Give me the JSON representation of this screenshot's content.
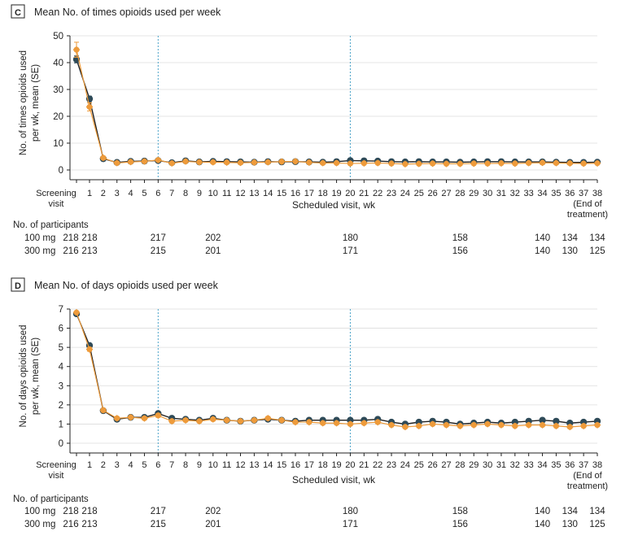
{
  "colors": {
    "dose100": "#2e4a58",
    "dose300": "#ee9b3b",
    "axis": "#222222",
    "ref_line": "#4aa3c8",
    "grid": "#dcdcdc"
  },
  "x_ticks": [
    "Screening",
    "1",
    "2",
    "3",
    "4",
    "5",
    "6",
    "7",
    "8",
    "9",
    "10",
    "11",
    "12",
    "13",
    "14",
    "15",
    "16",
    "17",
    "18",
    "19",
    "20",
    "21",
    "22",
    "23",
    "24",
    "25",
    "26",
    "27",
    "28",
    "29",
    "30",
    "31",
    "32",
    "33",
    "34",
    "35",
    "36",
    "37",
    "38"
  ],
  "x_sub_first": "visit",
  "x_sub_last": [
    "(End of",
    "treatment)"
  ],
  "participants": {
    "title": "No. of participants",
    "rows": [
      {
        "label": "100 mg",
        "ticks": [
          "Screening",
          "1",
          "6",
          "10",
          "20",
          "28",
          "34",
          "36",
          "38"
        ],
        "values": [
          "218",
          "218",
          "217",
          "202",
          "180",
          "158",
          "140",
          "134",
          "134"
        ]
      },
      {
        "label": "300 mg",
        "ticks": [
          "Screening",
          "1",
          "6",
          "10",
          "20",
          "28",
          "34",
          "36",
          "38"
        ],
        "values": [
          "216",
          "213",
          "215",
          "201",
          "171",
          "156",
          "140",
          "130",
          "125"
        ]
      }
    ]
  },
  "chart_data": [
    {
      "type": "line",
      "panel": "C",
      "title": "Mean No. of times opioids used per week",
      "xlabel": "Scheduled visit, wk",
      "ylabel": [
        "No. of times opioids used",
        "per wk, mean (SE)"
      ],
      "ylim": [
        0,
        50
      ],
      "yticks": [
        0,
        10,
        20,
        30,
        40,
        50
      ],
      "grid": true,
      "reference_lines_at": [
        "6",
        "20"
      ],
      "categories": [
        "Screening",
        "1",
        "2",
        "3",
        "4",
        "5",
        "6",
        "7",
        "8",
        "9",
        "10",
        "11",
        "12",
        "13",
        "14",
        "15",
        "16",
        "17",
        "18",
        "19",
        "20",
        "21",
        "22",
        "23",
        "24",
        "25",
        "26",
        "27",
        "28",
        "29",
        "30",
        "31",
        "32",
        "33",
        "34",
        "35",
        "36",
        "37",
        "38"
      ],
      "series": [
        {
          "name": "100 mg",
          "values": [
            41.2,
            26.5,
            4.2,
            2.8,
            3.2,
            3.3,
            3.5,
            2.7,
            3.4,
            3.0,
            3.2,
            3.1,
            3.0,
            2.9,
            3.1,
            3.0,
            3.1,
            3.0,
            2.9,
            3.1,
            3.5,
            3.4,
            3.3,
            3.1,
            3.0,
            3.1,
            3.0,
            3.0,
            2.9,
            3.0,
            3.1,
            3.1,
            3.0,
            3.0,
            3.0,
            2.9,
            2.8,
            2.8,
            2.9
          ],
          "se": [
            1.3,
            1.0,
            0.5,
            0.3,
            0.3,
            0.3,
            0.4,
            0.3,
            0.3,
            0.3,
            0.3,
            0.3,
            0.3,
            0.3,
            0.3,
            0.3,
            0.3,
            0.3,
            0.3,
            0.3,
            0.4,
            0.3,
            0.3,
            0.3,
            0.3,
            0.3,
            0.3,
            0.3,
            0.3,
            0.3,
            0.3,
            0.3,
            0.3,
            0.3,
            0.3,
            0.3,
            0.3,
            0.3,
            0.3
          ]
        },
        {
          "name": "300 mg",
          "values": [
            44.8,
            23.5,
            4.5,
            2.6,
            3.0,
            3.2,
            3.7,
            2.5,
            3.2,
            2.9,
            2.9,
            2.8,
            2.7,
            2.8,
            2.9,
            3.1,
            3.2,
            2.8,
            2.6,
            2.6,
            2.4,
            2.5,
            2.6,
            2.4,
            2.2,
            2.3,
            2.4,
            2.3,
            2.3,
            2.4,
            2.4,
            2.5,
            2.4,
            2.6,
            2.7,
            2.6,
            2.5,
            2.4,
            2.5
          ],
          "se": [
            2.8,
            1.5,
            0.6,
            0.3,
            0.3,
            0.3,
            0.4,
            0.3,
            0.3,
            0.3,
            0.3,
            0.3,
            0.3,
            0.3,
            0.3,
            0.3,
            0.3,
            0.3,
            0.3,
            0.3,
            0.3,
            0.3,
            0.3,
            0.3,
            0.3,
            0.3,
            0.3,
            0.3,
            0.3,
            0.3,
            0.3,
            0.3,
            0.3,
            0.3,
            0.3,
            0.3,
            0.3,
            0.3,
            0.3
          ]
        }
      ]
    },
    {
      "type": "line",
      "panel": "D",
      "title": "Mean No. of days opioids used per week",
      "xlabel": "Scheduled visit, wk",
      "ylabel": [
        "No. of days opioids used",
        "per wk, mean (SE)"
      ],
      "ylim": [
        0,
        7
      ],
      "yticks": [
        0,
        1,
        2,
        3,
        4,
        5,
        6,
        7
      ],
      "grid": true,
      "reference_lines_at": [
        "6",
        "20"
      ],
      "categories": [
        "Screening",
        "1",
        "2",
        "3",
        "4",
        "5",
        "6",
        "7",
        "8",
        "9",
        "10",
        "11",
        "12",
        "13",
        "14",
        "15",
        "16",
        "17",
        "18",
        "19",
        "20",
        "21",
        "22",
        "23",
        "24",
        "25",
        "26",
        "27",
        "28",
        "29",
        "30",
        "31",
        "32",
        "33",
        "34",
        "35",
        "36",
        "37",
        "38"
      ],
      "series": [
        {
          "name": "100 mg",
          "values": [
            6.75,
            5.1,
            1.7,
            1.25,
            1.35,
            1.35,
            1.55,
            1.3,
            1.25,
            1.2,
            1.3,
            1.2,
            1.15,
            1.2,
            1.25,
            1.2,
            1.15,
            1.2,
            1.2,
            1.2,
            1.2,
            1.2,
            1.25,
            1.1,
            1.0,
            1.1,
            1.15,
            1.1,
            1.0,
            1.05,
            1.1,
            1.05,
            1.1,
            1.15,
            1.2,
            1.15,
            1.05,
            1.1,
            1.15
          ],
          "se": [
            0.05,
            0.1,
            0.1,
            0.08,
            0.08,
            0.08,
            0.1,
            0.08,
            0.08,
            0.08,
            0.08,
            0.08,
            0.08,
            0.08,
            0.08,
            0.08,
            0.08,
            0.08,
            0.08,
            0.08,
            0.08,
            0.08,
            0.08,
            0.08,
            0.08,
            0.08,
            0.08,
            0.08,
            0.08,
            0.08,
            0.08,
            0.08,
            0.08,
            0.08,
            0.08,
            0.08,
            0.08,
            0.08,
            0.08
          ]
        },
        {
          "name": "300 mg",
          "values": [
            6.82,
            4.9,
            1.72,
            1.3,
            1.35,
            1.3,
            1.45,
            1.15,
            1.2,
            1.15,
            1.25,
            1.2,
            1.15,
            1.2,
            1.3,
            1.2,
            1.1,
            1.1,
            1.05,
            1.05,
            1.0,
            1.05,
            1.1,
            0.95,
            0.85,
            0.9,
            1.0,
            0.95,
            0.9,
            0.95,
            1.0,
            0.95,
            0.9,
            0.95,
            0.95,
            0.9,
            0.85,
            0.9,
            0.95
          ],
          "se": [
            0.06,
            0.1,
            0.1,
            0.08,
            0.08,
            0.08,
            0.1,
            0.08,
            0.08,
            0.08,
            0.08,
            0.08,
            0.08,
            0.08,
            0.08,
            0.08,
            0.08,
            0.08,
            0.08,
            0.08,
            0.08,
            0.08,
            0.08,
            0.08,
            0.08,
            0.08,
            0.08,
            0.08,
            0.08,
            0.08,
            0.08,
            0.08,
            0.08,
            0.08,
            0.08,
            0.08,
            0.08,
            0.08,
            0.08
          ]
        }
      ]
    }
  ]
}
